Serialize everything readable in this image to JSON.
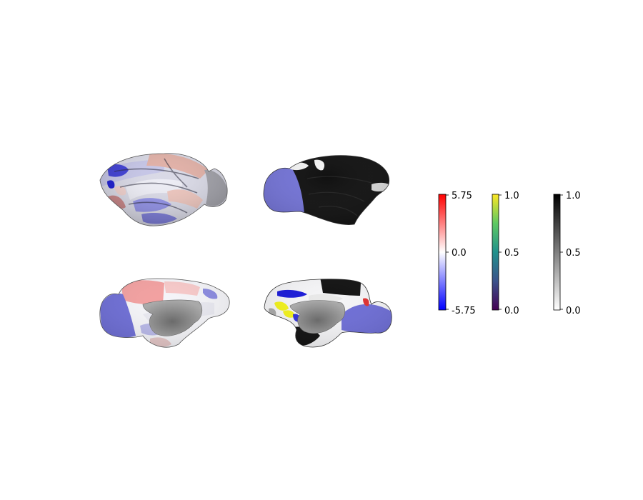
{
  "figure": {
    "panels": [
      {
        "name": "left-hemisphere-lateral-view"
      },
      {
        "name": "right-hemisphere-lateral-view"
      },
      {
        "name": "left-hemisphere-medial-view"
      },
      {
        "name": "right-hemisphere-medial-view"
      }
    ],
    "colorbars": [
      {
        "name": "diverging-colorbar",
        "colors": [
          "#0000ff",
          "#ffffff",
          "#ff0000"
        ],
        "ticks": [
          "5.75",
          "0.0",
          "-5.75"
        ]
      },
      {
        "name": "viridis-colorbar",
        "colors": [
          "#440154",
          "#3b528b",
          "#21918c",
          "#5ec962",
          "#fde725"
        ],
        "ticks": [
          "1.0",
          "0.5",
          "0.0"
        ]
      },
      {
        "name": "grayscale-colorbar",
        "colors": [
          "#ffffff",
          "#808080",
          "#000000"
        ],
        "ticks": [
          "1.0",
          "0.5",
          "0.0"
        ]
      }
    ]
  }
}
